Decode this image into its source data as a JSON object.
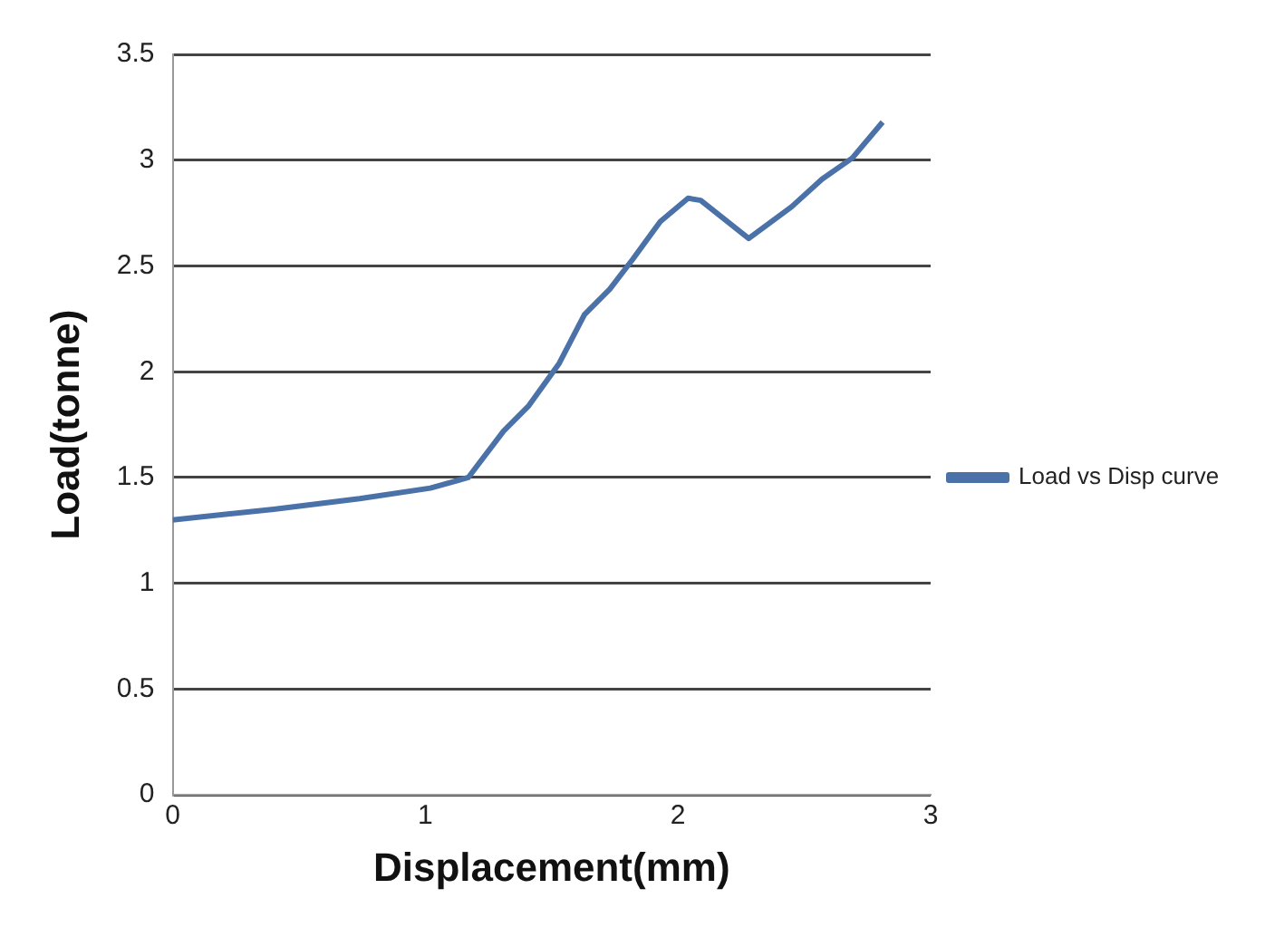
{
  "chart_data": {
    "type": "line",
    "xlabel": "Displacement(mm)",
    "ylabel": "Load(tonne)",
    "xlim": [
      0,
      3
    ],
    "xticks": [
      0,
      1,
      2,
      3
    ],
    "ylim": [
      0,
      3.5
    ],
    "yticks": [
      0,
      0.5,
      1,
      1.5,
      2,
      2.5,
      3,
      3.5
    ],
    "grid": "y",
    "legend": "right",
    "marker": "none",
    "line_style": "solid",
    "series": [
      {
        "name": "Load vs Disp curve",
        "color": "#4a71a8",
        "x": [
          0,
          0.4,
          0.74,
          1.02,
          1.17,
          1.31,
          1.41,
          1.53,
          1.63,
          1.73,
          1.82,
          1.93,
          2.04,
          2.09,
          2.28,
          2.45,
          2.57,
          2.69,
          2.81
        ],
        "values": [
          1.3,
          1.35,
          1.4,
          1.45,
          1.5,
          1.72,
          1.84,
          2.04,
          2.27,
          2.39,
          2.53,
          2.71,
          2.82,
          2.81,
          2.63,
          2.78,
          2.91,
          3.01,
          3.18
        ]
      }
    ]
  }
}
